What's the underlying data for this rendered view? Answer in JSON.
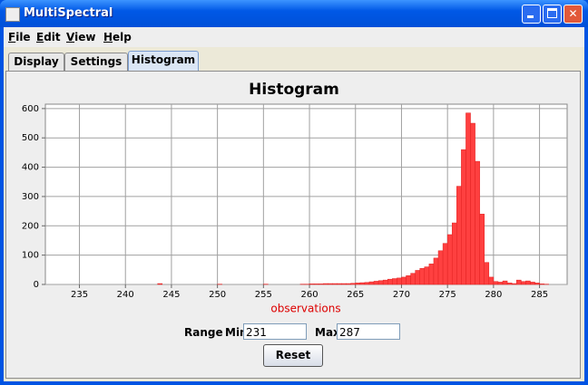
{
  "window": {
    "title": "MultiSpectral"
  },
  "menu": [
    "File",
    "Edit",
    "View",
    "Help"
  ],
  "tabs": [
    "Display",
    "Settings",
    "Histogram"
  ],
  "chart_data": {
    "type": "histogram",
    "title": "Histogram",
    "xlabel": "observations",
    "bins": [
      243,
      243.5,
      244,
      244.5,
      245,
      245.5,
      246,
      246.5,
      247,
      247.5,
      248,
      248.5,
      249,
      249.5,
      250,
      250.5,
      251,
      251.5,
      252,
      252.5,
      253,
      253.5,
      254,
      254.5,
      255,
      255.5,
      256,
      256.5,
      257,
      257.5,
      258,
      258.5,
      259,
      259.5,
      260,
      260.5,
      261,
      261.5,
      262,
      262.5,
      263,
      263.5,
      264,
      264.5,
      265,
      265.5,
      266,
      266.5,
      267,
      267.5,
      268,
      268.5,
      269,
      269.5,
      270,
      270.5,
      271,
      271.5,
      272,
      272.5,
      273,
      273.5,
      274,
      274.5,
      275,
      275.5,
      276,
      276.5,
      277,
      277.5,
      278,
      278.5,
      279,
      279.5,
      280,
      280.5,
      281,
      281.5,
      282,
      282.5,
      283,
      283.5,
      284,
      284.5,
      285,
      285.5,
      286
    ],
    "values": [
      0,
      3,
      0,
      0,
      0,
      0,
      0,
      0,
      0,
      0,
      0,
      0,
      0,
      0,
      1,
      0,
      0,
      0,
      0,
      0,
      0,
      0,
      0,
      0,
      1,
      0,
      0,
      0,
      0,
      0,
      0,
      0,
      1,
      1,
      2,
      2,
      2,
      3,
      3,
      3,
      3,
      3,
      3,
      4,
      5,
      6,
      7,
      9,
      11,
      13,
      15,
      18,
      20,
      22,
      25,
      30,
      38,
      48,
      55,
      60,
      70,
      90,
      115,
      140,
      170,
      210,
      335,
      460,
      585,
      550,
      420,
      240,
      75,
      25,
      10,
      8,
      12,
      5,
      3,
      15,
      10,
      12,
      8,
      5,
      2,
      1
    ],
    "color": "#ff4040",
    "xlim": [
      231.3,
      288
    ],
    "ylim": [
      0,
      615
    ],
    "xticks": [
      235,
      240,
      245,
      250,
      255,
      260,
      265,
      270,
      275,
      280,
      285
    ],
    "yticks": [
      0,
      100,
      200,
      300,
      400,
      500,
      600
    ],
    "grid": true
  },
  "range": {
    "label": "Range",
    "min_label": "Min",
    "min": 231,
    "max_label": "Max",
    "max": 287
  },
  "button": "Reset"
}
